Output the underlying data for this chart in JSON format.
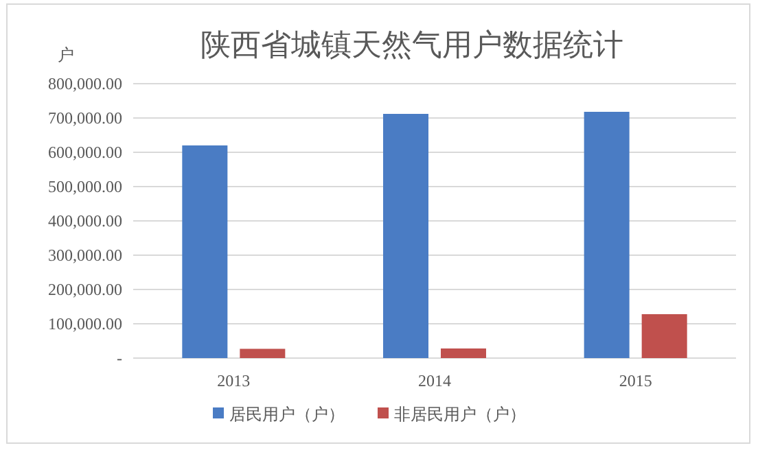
{
  "chart_data": {
    "type": "bar",
    "title": "陕西省城镇天然气用户数据统计",
    "ylabel": "户",
    "categories": [
      "2013",
      "2014",
      "2015"
    ],
    "series": [
      {
        "name": "居民用户（户）",
        "color": "#4a7cc4",
        "values": [
          620000,
          712000,
          718000
        ]
      },
      {
        "name": "非居民用户（户）",
        "color": "#c0504d",
        "values": [
          27000,
          28000,
          128000
        ]
      }
    ],
    "ylim": [
      0,
      800000
    ],
    "yticks": [
      {
        "value": 0,
        "label": "-"
      },
      {
        "value": 100000,
        "label": "100,000.00"
      },
      {
        "value": 200000,
        "label": "200,000.00"
      },
      {
        "value": 300000,
        "label": "300,000.00"
      },
      {
        "value": 400000,
        "label": "400,000.00"
      },
      {
        "value": 500000,
        "label": "500,000.00"
      },
      {
        "value": 600000,
        "label": "600,000.00"
      },
      {
        "value": 700000,
        "label": "700,000.00"
      },
      {
        "value": 800000,
        "label": "800,000.00"
      }
    ],
    "grid": "y",
    "legend": "bottom"
  }
}
